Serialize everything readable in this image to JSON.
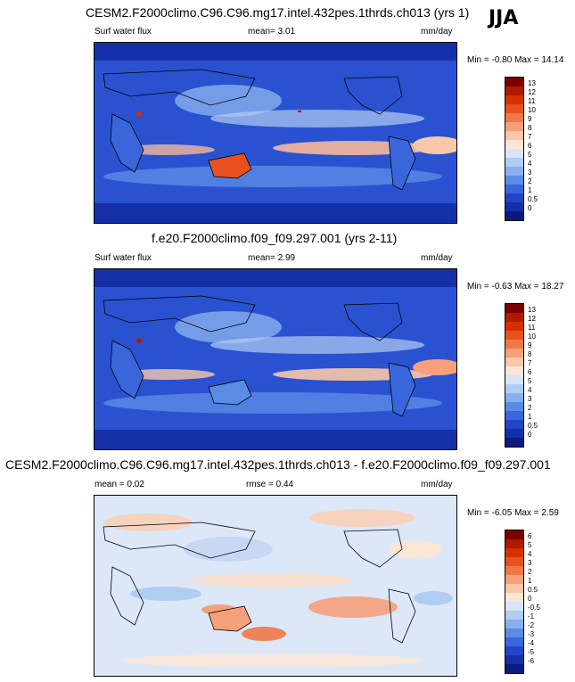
{
  "season_label": "JJA",
  "panels": [
    {
      "title": "CESM2.F2000climo.C96.C96.mg17.intel.432pes.1thrds.ch013 (yrs 1)",
      "left_label": "Surf water flux",
      "stat1": "mean=   3.01",
      "stat2": "",
      "units": "mm/day",
      "minmax": "Min = -0.80 Max = 14.14",
      "kind": "abs"
    },
    {
      "title": "f.e20.F2000climo.f09_f09.297.001 (yrs 2-11)",
      "left_label": "Surf water flux",
      "stat1": "mean=   2.99",
      "stat2": "",
      "units": "mm/day",
      "minmax": "Min = -0.63 Max = 18.27",
      "kind": "abs"
    },
    {
      "title": "CESM2.F2000climo.C96.C96.mg17.intel.432pes.1thrds.ch013 - f.e20.F2000climo.f09_f09.297.001",
      "left_label": "mean =   0.02",
      "stat1": "rmse =   0.44",
      "stat2": "",
      "units": "mm/day",
      "minmax": "Min = -6.05 Max =  2.59",
      "kind": "diff"
    }
  ],
  "colorbar_abs": {
    "labels": [
      "13",
      "12",
      "11",
      "10",
      "9",
      "8",
      "7",
      "6",
      "5",
      "4",
      "3",
      "2",
      "1",
      "0.5",
      "0"
    ],
    "colors": [
      "#7a0000",
      "#b01a00",
      "#d63000",
      "#e85020",
      "#f07848",
      "#f5a07a",
      "#f8c8a8",
      "#fbe6d4",
      "#d6e6f8",
      "#b0cdf2",
      "#88b0ec",
      "#5a8ce6",
      "#3a66dc",
      "#2244c8",
      "#1430a8",
      "#0a1a80"
    ]
  },
  "colorbar_diff": {
    "labels": [
      "6",
      "5",
      "4",
      "3",
      "2",
      "1",
      "0.5",
      "0",
      "-0.5",
      "-1",
      "-2",
      "-3",
      "-4",
      "-5",
      "-6"
    ],
    "colors": [
      "#7a0000",
      "#b01a00",
      "#d63000",
      "#e85020",
      "#f07848",
      "#f5a07a",
      "#f8c8a8",
      "#fbe6d4",
      "#d6e6f8",
      "#b0cdf2",
      "#88b0ec",
      "#5a8ce6",
      "#3a66dc",
      "#2244c8",
      "#1430a8",
      "#0a1a80"
    ]
  }
}
